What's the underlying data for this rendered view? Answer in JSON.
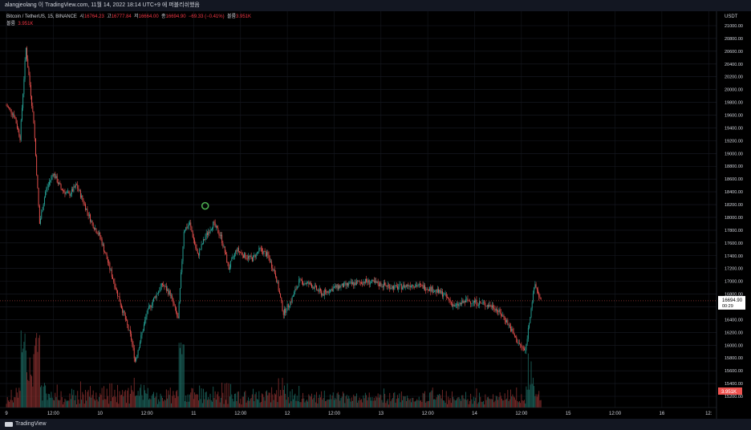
{
  "header": {
    "title": "alangjeolang 이 TradingView.com, 11월 14, 2022 18:14 UTC+9 에 퍼블리쉬했음"
  },
  "legend": {
    "symbol": "Bitcoin / TetherUS, 15, BINANCE",
    "open_label": "시",
    "open": "16764.23",
    "high_label": "고",
    "high": "16777.84",
    "low_label": "저",
    "low": "16664.00",
    "close_label": "종",
    "close": "16694.90",
    "change": "−69.33 (−0.41%)",
    "volume_label": "볼륨",
    "volume": "3.951K"
  },
  "price_axis": {
    "currency": "USDT",
    "last_price": "16694.90",
    "countdown": "00:29",
    "volume_badge": "3.951K"
  },
  "footer": {
    "brand": "TradingView"
  },
  "colors": {
    "up": "#26a69a",
    "down": "#ef5350",
    "background": "#000000",
    "marker": "#4caf50"
  },
  "chart_data": {
    "type": "candlestick",
    "symbol": "BTC/USDT",
    "interval": "15",
    "ylim": [
      15100,
      21200
    ],
    "y_ticks": [
      15200,
      15400,
      15600,
      15800,
      16000,
      16200,
      16400,
      16600,
      16800,
      17000,
      17200,
      17400,
      17600,
      17800,
      18000,
      18200,
      18400,
      18600,
      18800,
      19000,
      19200,
      19400,
      19600,
      19800,
      20000,
      20200,
      20400,
      20600,
      20800,
      21000
    ],
    "y_tick_labels": [
      "15200.00",
      "15400.00",
      "15600.00",
      "15800.00",
      "16000.00",
      "16200.00",
      "16400.00",
      "16600.00",
      "16800.00",
      "17000.00",
      "17200.00",
      "17400.00",
      "17600.00",
      "17800.00",
      "18000.00",
      "18200.00",
      "18400.00",
      "18600.00",
      "18800.00",
      "19000.00",
      "19200.00",
      "19400.00",
      "19600.00",
      "19800.00",
      "20000.00",
      "20200.00",
      "20400.00",
      "20600.00",
      "20800.00",
      "21000.00"
    ],
    "x_ticks": [
      "9",
      "12:00",
      "10",
      "12:00",
      "11",
      "12:00",
      "12",
      "12:00",
      "13",
      "12:00",
      "14",
      "12:00",
      "15",
      "12:00",
      "16",
      "12:"
    ],
    "price_path": [
      [
        "9 00:00",
        19750
      ],
      [
        "9 02:00",
        19600
      ],
      [
        "9 03:30",
        19250
      ],
      [
        "9 05:00",
        20650
      ],
      [
        "9 07:00",
        19500
      ],
      [
        "9 08:30",
        17900
      ],
      [
        "9 10:00",
        18400
      ],
      [
        "9 12:00",
        18700
      ],
      [
        "9 14:00",
        18450
      ],
      [
        "9 16:00",
        18350
      ],
      [
        "9 18:00",
        18500
      ],
      [
        "9 20:00",
        18200
      ],
      [
        "9 22:00",
        17900
      ],
      [
        "10 00:00",
        17700
      ],
      [
        "10 02:00",
        17300
      ],
      [
        "10 04:00",
        16900
      ],
      [
        "10 06:00",
        16500
      ],
      [
        "10 08:00",
        16100
      ],
      [
        "10 09:00",
        15750
      ],
      [
        "10 10:00",
        16000
      ],
      [
        "10 12:00",
        16500
      ],
      [
        "10 14:00",
        16750
      ],
      [
        "10 16:00",
        16950
      ],
      [
        "10 18:00",
        16800
      ],
      [
        "10 20:00",
        16400
      ],
      [
        "10 21:30",
        17800
      ],
      [
        "10 23:00",
        17900
      ],
      [
        "11 01:00",
        17400
      ],
      [
        "11 03:00",
        17700
      ],
      [
        "11 05:00",
        17900
      ],
      [
        "11 07:00",
        17700
      ],
      [
        "11 09:00",
        17200
      ],
      [
        "11 11:00",
        17500
      ],
      [
        "11 13:00",
        17400
      ],
      [
        "11 15:00",
        17350
      ],
      [
        "11 17:00",
        17500
      ],
      [
        "11 19:00",
        17400
      ],
      [
        "11 21:00",
        17100
      ],
      [
        "11 23:00",
        16500
      ],
      [
        "12 01:00",
        16700
      ],
      [
        "12 03:00",
        17000
      ],
      [
        "12 06:00",
        16950
      ],
      [
        "12 09:00",
        16800
      ],
      [
        "12 12:00",
        16900
      ],
      [
        "12 16:00",
        16950
      ],
      [
        "12 20:00",
        17000
      ],
      [
        "13 00:00",
        16950
      ],
      [
        "13 04:00",
        16900
      ],
      [
        "13 08:00",
        16950
      ],
      [
        "13 12:00",
        16900
      ],
      [
        "13 16:00",
        16800
      ],
      [
        "13 19:00",
        16600
      ],
      [
        "13 22:00",
        16700
      ],
      [
        "14 02:00",
        16650
      ],
      [
        "14 05:00",
        16600
      ],
      [
        "14 08:00",
        16400
      ],
      [
        "14 11:00",
        16050
      ],
      [
        "14 13:00",
        15900
      ],
      [
        "14 14:30",
        16600
      ],
      [
        "14 15:30",
        16950
      ],
      [
        "14 17:00",
        16695
      ]
    ],
    "last_close": 16694.9
  }
}
